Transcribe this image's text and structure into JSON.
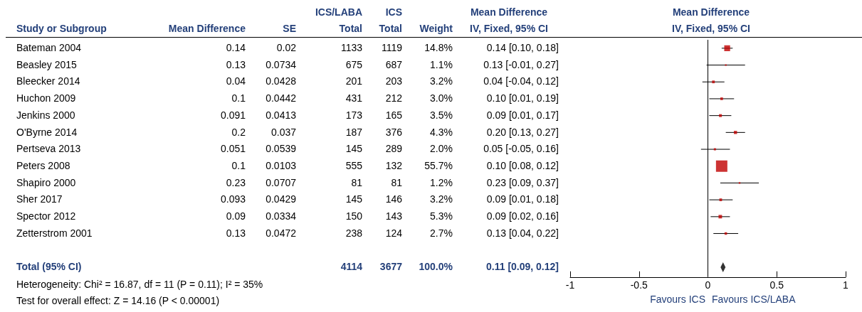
{
  "chart_data": [
    {
      "type": "other",
      "ylabel": "Study or Subgroup",
      "color": "#24407a",
      "data_labels": true,
      "categories": [
        "Bateman 2004",
        "Beasley 2015",
        "Bleecker 2014",
        "Huchon 2009",
        "Jenkins 2000",
        "O'Byrne 2014",
        "Pertseva 2013",
        "Peters 2008",
        "Shapiro 2000",
        "Sher 2017",
        "Spector 2012",
        "Zetterstrom 2001",
        "Total (95% CI)"
      ],
      "series": [
        {
          "name": "Mean Difference",
          "values": [
            0.14,
            0.13,
            0.04,
            0.1,
            0.091,
            0.2,
            0.051,
            0.1,
            0.23,
            0.093,
            0.09,
            0.13,
            null
          ]
        },
        {
          "name": "SE",
          "values": [
            0.02,
            0.0734,
            0.0428,
            0.0442,
            0.0413,
            0.037,
            0.0539,
            0.0103,
            0.0707,
            0.0429,
            0.0334,
            0.0472,
            null
          ]
        },
        {
          "name": "ICS/LABA\nTotal",
          "values": [
            1133,
            675,
            201,
            431,
            173,
            187,
            145,
            555,
            81,
            145,
            150,
            238,
            4114
          ]
        },
        {
          "name": "ICS\nTotal",
          "values": [
            1119,
            687,
            203,
            212,
            165,
            376,
            289,
            132,
            81,
            146,
            143,
            124,
            3677
          ]
        },
        {
          "name": "Weight",
          "values": [
            14.8,
            1.1,
            3.2,
            3.0,
            3.5,
            4.3,
            2.0,
            55.7,
            1.2,
            3.2,
            5.3,
            2.7,
            100.0
          ],
          "value_labels": [
            "14.8%",
            "1.1%",
            "3.2%",
            "3.0%",
            "3.5%",
            "4.3%",
            "2.0%",
            "55.7%",
            "1.2%",
            "3.2%",
            "5.3%",
            "2.7%",
            "100.0%"
          ]
        },
        {
          "name": "Mean Difference\nIV, Fixed, 95% CI",
          "values": [
            0.14,
            0.13,
            0.04,
            0.1,
            0.09,
            0.2,
            0.05,
            0.1,
            0.23,
            0.09,
            0.09,
            0.13,
            0.11
          ],
          "value_labels": [
            "0.14 [0.10, 0.18]",
            "0.13 [-0.01, 0.27]",
            "0.04 [-0.04, 0.12]",
            "0.10 [0.01, 0.19]",
            "0.09 [0.01, 0.17]",
            "0.20 [0.13, 0.27]",
            "0.05 [-0.05, 0.16]",
            "0.10 [0.08, 0.12]",
            "0.23 [0.09, 0.37]",
            "0.09 [0.01, 0.18]",
            "0.09 [0.02, 0.16]",
            "0.13 [0.04, 0.22]",
            "0.11 [0.09, 0.12]"
          ]
        }
      ],
      "annotations": [
        "Heterogeneity: Chi² = 16.87, df = 11 (P = 0.11); I² = 35%",
        "Test for overall effect: Z = 14.16 (P < 0.00001)"
      ]
    },
    {
      "type": "bubble",
      "orientation": "horizontal",
      "title": "Mean Difference\nIV, Fixed, 95% CI",
      "tick_labels": "x",
      "grid": false,
      "categories": [
        null,
        null,
        null,
        null,
        null,
        null,
        null,
        null,
        null,
        null,
        null,
        null,
        null,
        null
      ],
      "series": [
        {
          "marker": "square",
          "color": "#c00000",
          "values": [
            0.14,
            0.13,
            0.04,
            0.1,
            0.091,
            0.2,
            0.051,
            0.1,
            0.23,
            0.093,
            0.09,
            0.13,
            null,
            null
          ],
          "errors": [
            [
              0.1,
              0.18
            ],
            [
              -0.01,
              0.27
            ],
            [
              -0.04,
              0.12
            ],
            [
              0.01,
              0.19
            ],
            [
              0.01,
              0.17
            ],
            [
              0.13,
              0.27
            ],
            [
              -0.05,
              0.16
            ],
            null,
            [
              0.09,
              0.37
            ],
            [
              0.01,
              0.18
            ],
            [
              0.02,
              0.16
            ],
            [
              0.04,
              0.22
            ],
            null,
            null
          ],
          "sizes": [
            0.266,
            0.02,
            0.057,
            0.054,
            0.063,
            0.077,
            0.036,
            1,
            0.022,
            0.057,
            0.095,
            0.048,
            null,
            null
          ]
        },
        {
          "type": "scatter",
          "marker": "diamond",
          "color": "#000000",
          "values": [
            null,
            null,
            null,
            null,
            null,
            null,
            null,
            null,
            null,
            null,
            null,
            null,
            null,
            0.11
          ]
        }
      ],
      "xlim": [
        -1,
        1
      ],
      "xticks": [
        -1,
        -0.5,
        0,
        0.5,
        1
      ],
      "ref_lines": [
        {
          "axis": "x",
          "value": 0,
          "color": "#000000"
        }
      ],
      "annotations": [
        "Favours ICS",
        "Favours ICS/LABA"
      ]
    }
  ]
}
